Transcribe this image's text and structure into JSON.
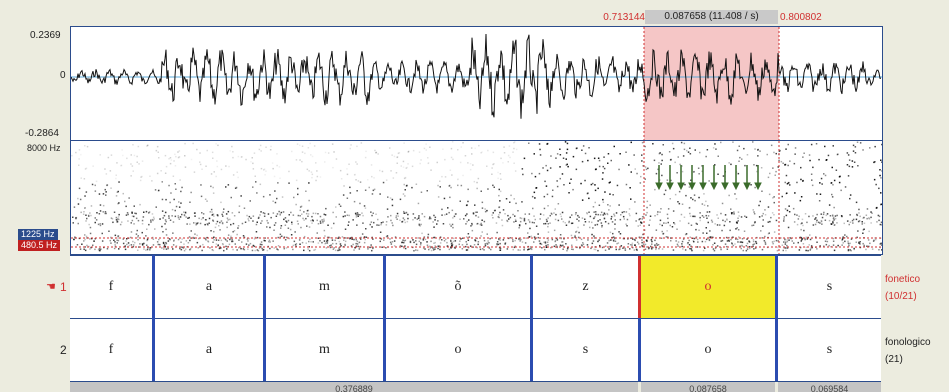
{
  "selection": {
    "start": "0.713144",
    "duration": "0.087658 (11.408 / s)",
    "end": "0.800802"
  },
  "waveform": {
    "max": "0.2369",
    "zero": "0",
    "min": "-0.2864"
  },
  "spectrogram": {
    "top_freq": "8000 Hz",
    "formant1": "1225 Hz",
    "formant2": "480.5 Hz"
  },
  "tiers": [
    {
      "number": "1",
      "name": "fonetico",
      "count": "(10/21)",
      "segments": [
        "f",
        "a",
        "m",
        "õ",
        "z",
        "o",
        "s"
      ]
    },
    {
      "number": "2",
      "name": "fonologico",
      "count": "(21)",
      "segments": [
        "f",
        "a",
        "m",
        "o",
        "s",
        "o",
        "s"
      ]
    }
  ],
  "timeline": {
    "visible": "0.376889",
    "selection": "0.087658",
    "after": "0.069584"
  },
  "colors": {
    "selection": "#f5c6c6",
    "highlight": "#f2ea2a",
    "boundary": "#2b4cb0",
    "accent": "#d03030"
  }
}
